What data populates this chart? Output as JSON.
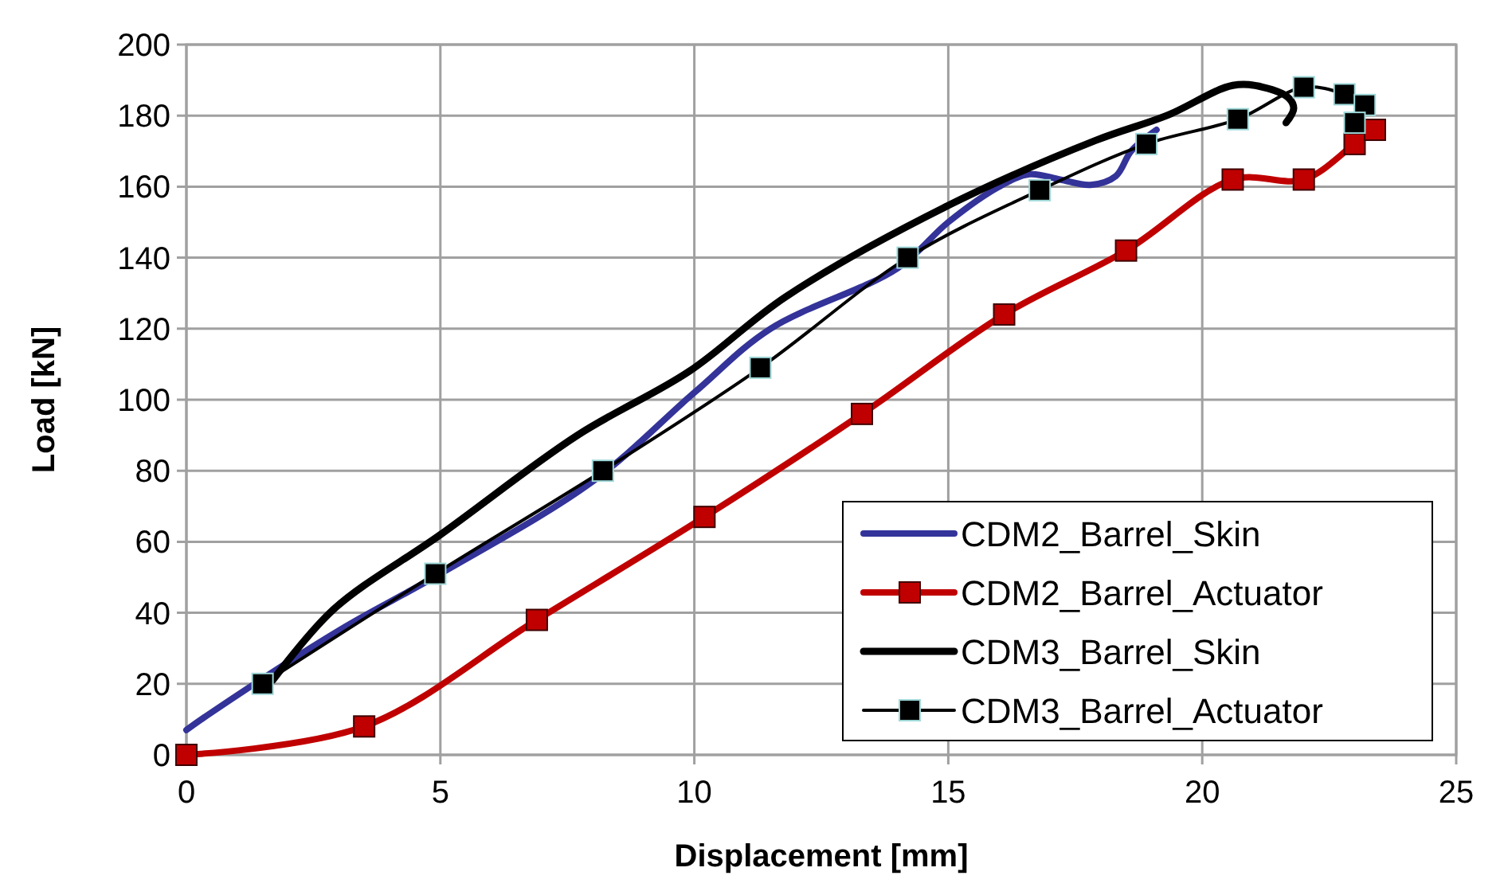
{
  "chart_data": {
    "type": "line",
    "xlabel": "Displacement [mm]",
    "ylabel": "Load [kN]",
    "xlim": [
      0,
      25
    ],
    "ylim": [
      0,
      200
    ],
    "xticks": [
      0,
      5,
      10,
      15,
      20,
      25
    ],
    "yticks": [
      0,
      20,
      40,
      60,
      80,
      100,
      120,
      140,
      160,
      180,
      200
    ],
    "grid": true,
    "legend": "bottom right",
    "series": [
      {
        "name": "CDM2_Barrel_Skin",
        "color": "#333399",
        "marker": "none",
        "x": [
          0,
          0.5,
          3,
          5,
          8,
          10,
          11.5,
          14,
          15,
          16,
          16.6,
          17.2,
          17.8,
          18.3,
          18.6,
          19.1
        ],
        "values": [
          7,
          12,
          35,
          51,
          77,
          102,
          120,
          137,
          150,
          160,
          163.5,
          162,
          160.5,
          163,
          170,
          176
        ]
      },
      {
        "name": "CDM2_Barrel_Actuator",
        "color": "#c00000",
        "marker": "square",
        "x": [
          0,
          3.5,
          6.9,
          10.2,
          13.3,
          16.1,
          18.5,
          20.6,
          22,
          23,
          23.4
        ],
        "values": [
          0,
          8,
          38,
          67,
          96,
          124,
          142,
          162,
          162,
          172,
          176
        ]
      },
      {
        "name": "CDM3_Barrel_Skin",
        "color": "#000000",
        "marker": "none",
        "x": [
          1.7,
          2.9,
          5,
          7.7,
          9.9,
          11.8,
          14.9,
          17.9,
          19.3,
          20.6,
          21.2,
          21.7,
          21.8,
          21.65
        ],
        "values": [
          21,
          41,
          62,
          90,
          108,
          129,
          154,
          173,
          180,
          188.5,
          188,
          185,
          182,
          178
        ]
      },
      {
        "name": "CDM3_Barrel_Actuator",
        "color": "#000000",
        "marker": "square",
        "x": [
          1.5,
          4.9,
          8.2,
          11.3,
          14.2,
          16.8,
          18.9,
          20.7,
          22,
          22.8,
          23.2,
          23
        ],
        "values": [
          20,
          51,
          80,
          109,
          140,
          159,
          172,
          179,
          188,
          186,
          183,
          178
        ]
      }
    ]
  }
}
